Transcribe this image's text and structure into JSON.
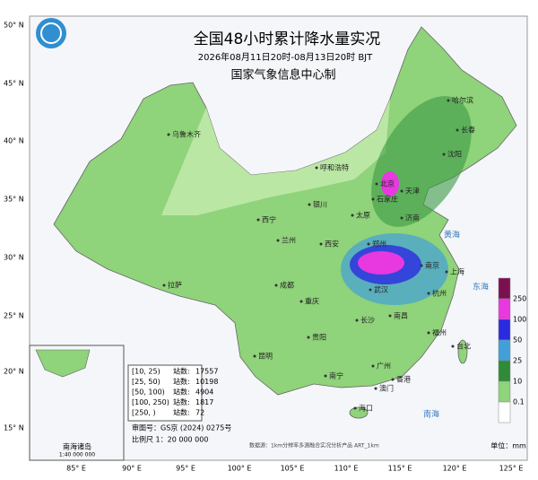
{
  "header": {
    "title": "全国48小时累计降水量实况",
    "subtitle": "2026年08月11日20时-08月13日20时 BJT",
    "agency": "国家气象信息中心制"
  },
  "axes": {
    "lat_labels": [
      "50° N",
      "45° N",
      "40° N",
      "35° N",
      "30° N",
      "25° N",
      "20° N",
      "15° N"
    ],
    "lon_labels": [
      "85° E",
      "90° E",
      "95° E",
      "100° E",
      "105° E",
      "110° E",
      "115° E",
      "120° E",
      "125° E"
    ]
  },
  "cities": [
    "乌鲁木齐",
    "呼和浩特",
    "哈尔滨",
    "长春",
    "沈阳",
    "北京",
    "天津",
    "石家庄",
    "银川",
    "太原",
    "济南",
    "西宁",
    "兰州",
    "西安",
    "郑州",
    "南京",
    "上海",
    "拉萨",
    "成都",
    "武汉",
    "杭州",
    "重庆",
    "长沙",
    "南昌",
    "贵阳",
    "福州",
    "台北",
    "昆明",
    "南宁",
    "广州",
    "香港",
    "澳门",
    "海口"
  ],
  "seas": [
    "黄海",
    "东海",
    "南海"
  ],
  "legend": {
    "labels": [
      "250",
      "100",
      "50",
      "25",
      "10",
      "0.1"
    ],
    "unit": "单位：mm"
  },
  "stations": [
    {
      "range": "[10, 25)",
      "label": "站数:",
      "count": "17557"
    },
    {
      "range": "[25, 50)",
      "label": "站数:",
      "count": "10198"
    },
    {
      "range": "[50, 100)",
      "label": "站数:",
      "count": "4904"
    },
    {
      "range": "[100, 250)",
      "label": "站数:",
      "count": "1817"
    },
    {
      "range": "[250, )",
      "label": "站数:",
      "count": "72"
    }
  ],
  "footer": {
    "approval": "审图号：GS京 (2024) 0275号",
    "scale": "比例尺 1：20 000 000",
    "source": "数据源：1km分辨率多源融合实况分析产品 ART_1km"
  },
  "inset": {
    "title": "南海诸岛",
    "scale": "1:40 000 000"
  }
}
